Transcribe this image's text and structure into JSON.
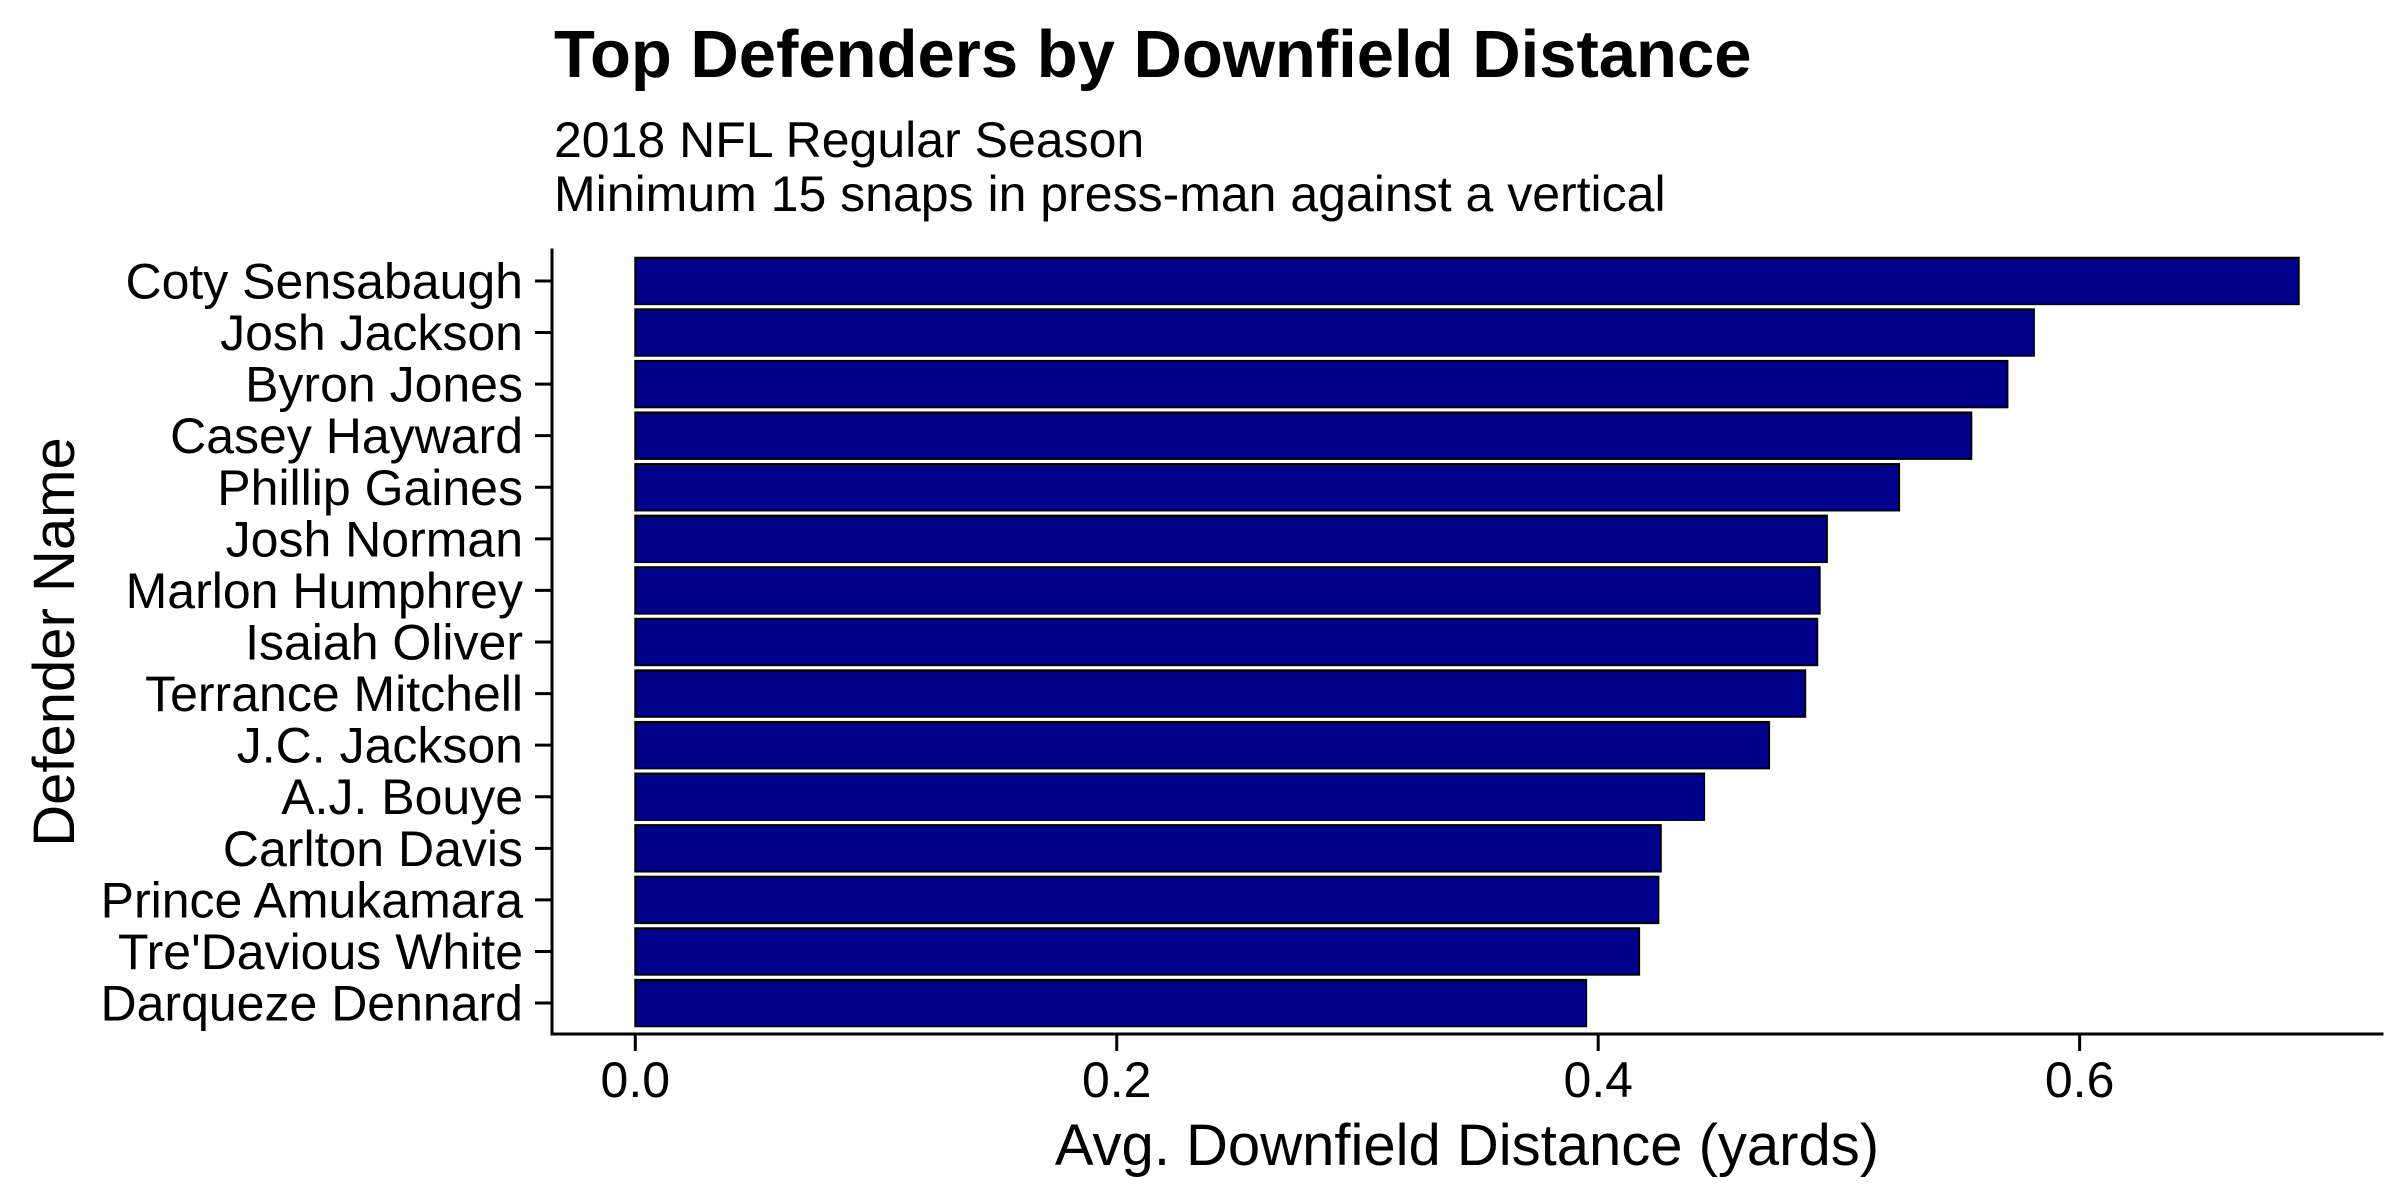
{
  "chart_data": {
    "type": "bar",
    "orientation": "horizontal",
    "title": "Top Defenders by Downfield Distance",
    "subtitle": [
      "2018 NFL Regular Season",
      "Minimum 15 snaps in press-man against a vertical"
    ],
    "xlabel": "Avg. Downfield Distance (yards)",
    "ylabel": "Defender Name",
    "categories": [
      "Coty Sensabaugh",
      "Josh Jackson",
      "Byron Jones",
      "Casey Hayward",
      "Phillip Gaines",
      "Josh Norman",
      "Marlon Humphrey",
      "Isaiah Oliver",
      "Terrance Mitchell",
      "J.C. Jackson",
      "A.J. Bouye",
      "Carlton Davis",
      "Prince Amukamara",
      "Tre'Davious White",
      "Darqueze Dennard"
    ],
    "values": [
      0.691,
      0.581,
      0.57,
      0.555,
      0.525,
      0.495,
      0.492,
      0.491,
      0.486,
      0.471,
      0.444,
      0.426,
      0.425,
      0.417,
      0.395
    ],
    "xlim": [
      -0.0346,
      0.7256
    ],
    "xticks": [
      0,
      0.2,
      0.4,
      0.6
    ],
    "xtick_labels": [
      "0.0",
      "0.2",
      "0.4",
      "0.6"
    ],
    "grid": false,
    "colors": {
      "bar_fill": "#00008B",
      "bar_outline": "#000000",
      "text": "#000000",
      "background": "#FFFFFF"
    }
  }
}
